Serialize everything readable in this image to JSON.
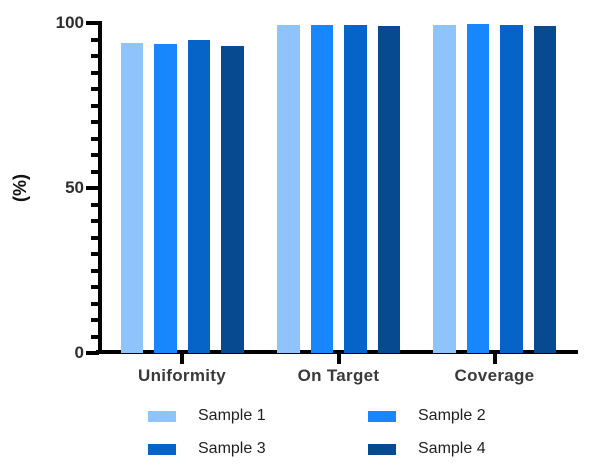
{
  "chart_data": {
    "type": "bar",
    "categories": [
      "Uniformity",
      "On Target",
      "Coverage"
    ],
    "series": [
      {
        "name": "Sample 1",
        "color": "#8FC3FB",
        "values": [
          94,
          99.5,
          99.5
        ]
      },
      {
        "name": "Sample 2",
        "color": "#1886FC",
        "values": [
          93.5,
          99.5,
          99.6
        ]
      },
      {
        "name": "Sample 3",
        "color": "#0663C8",
        "values": [
          95,
          99.5,
          99.5
        ]
      },
      {
        "name": "Sample 4",
        "color": "#084A90",
        "values": [
          93,
          99,
          99.2
        ]
      }
    ],
    "title": "",
    "xlabel": "",
    "ylabel": "(%)",
    "ylim": [
      0,
      100
    ],
    "yticks": [
      0,
      50,
      100
    ],
    "minor_tick_step": 5,
    "grid": false,
    "legend_position": "bottom",
    "axis_color": "#000000",
    "tick_text_color": "#2e2e2e",
    "category_text_color": "#3a3a3a",
    "legend_text_color": "#1f1f1f"
  }
}
